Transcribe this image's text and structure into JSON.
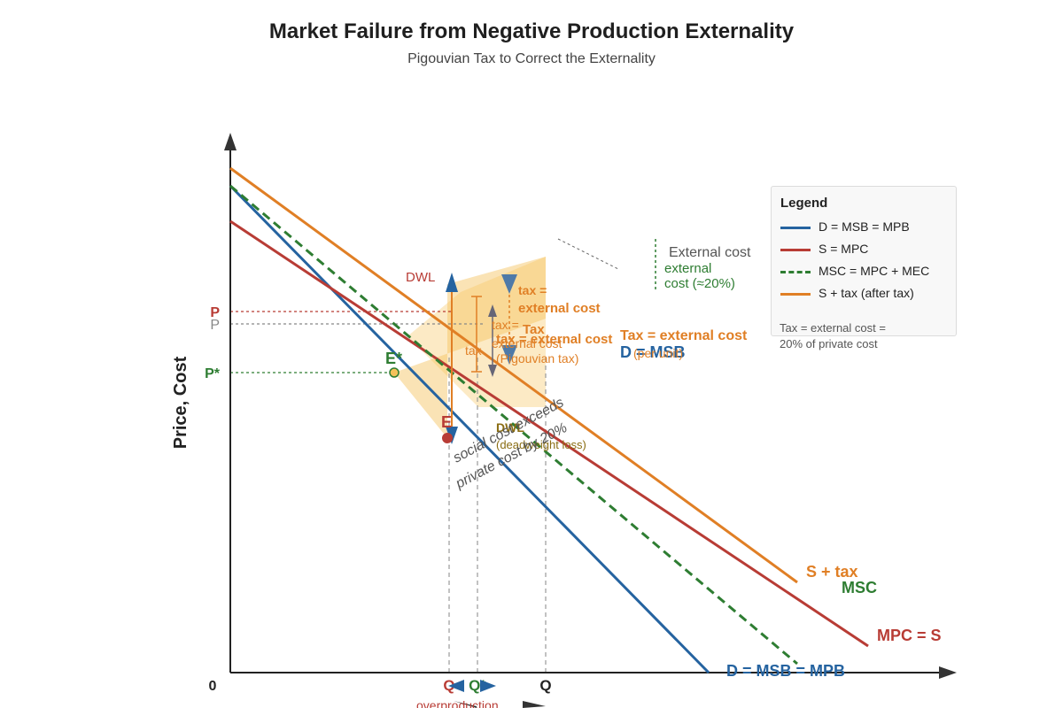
{
  "title": "Market Failure from Negative Production Externality",
  "subtitle": "Pigouvian Tax to Correct the Externality",
  "chart_data": {
    "type": "line",
    "title": "Market Failure from Negative Production Externality",
    "subtitle": "Pigouvian Tax to Correct the Externality",
    "xlabel": "",
    "ylabel": "Price, Cost",
    "xlim": [
      0,
      820
    ],
    "ylim": [
      0,
      610
    ],
    "origin_label": "0",
    "series": [
      {
        "name": "D = MSB = MPB",
        "style": "solid",
        "color": "#2563a0",
        "points": [
          [
            0,
            550
          ],
          [
            540,
            0
          ]
        ]
      },
      {
        "name": "S = MPC",
        "style": "solid",
        "color": "#b83c35",
        "points": [
          [
            0,
            510
          ],
          [
            720,
            30
          ]
        ]
      },
      {
        "name": "MSC = MPC + MEC",
        "style": "dashed",
        "color": "#2e7d32",
        "points": [
          [
            0,
            550
          ],
          [
            640,
            10
          ]
        ]
      },
      {
        "name": "S + tax (after tax)",
        "style": "solid",
        "color": "#e07f25",
        "points": [
          [
            0,
            570
          ],
          [
            640,
            102
          ]
        ]
      }
    ],
    "curve_labels": [
      {
        "text": "S + tax",
        "x": 650,
        "y": 108,
        "color": "#e07f25"
      },
      {
        "text": "MSC",
        "x": 690,
        "y": 90,
        "color": "#2e7d32"
      },
      {
        "text": "MPC = S",
        "x": 730,
        "y": 36,
        "color": "#b83c35"
      },
      {
        "text": "D = MSB = MPB",
        "x": 560,
        "y": -4,
        "color": "#2563a0"
      },
      {
        "text": "D = MSB",
        "x": 440,
        "y": 356,
        "color": "#2563a0"
      }
    ],
    "price_marks": [
      {
        "label": "P",
        "y": 408,
        "color": "#b83c35",
        "x_end": 250
      },
      {
        "label": "P",
        "y": 394,
        "color": "#888888",
        "x_end": 285
      },
      {
        "label": "P*",
        "y": 339,
        "color": "#2e7d32",
        "x_end": 185
      }
    ],
    "quantity_marks": [
      {
        "label": "Q",
        "x": 247,
        "color": "#b83c35"
      },
      {
        "label": "Q*",
        "x": 279,
        "color": "#2e7d32"
      },
      {
        "label": "Q",
        "x": 356,
        "color": "#222222"
      }
    ],
    "points": [
      {
        "label": "E*",
        "x": 185,
        "y": 339,
        "color": "#2e7d32",
        "marker": "ring"
      },
      {
        "label": "E",
        "x": 245,
        "y": 265,
        "color": "#b83c35",
        "marker": "dot"
      }
    ],
    "annotations": [
      {
        "text": "DWL",
        "x": 198,
        "y": 442,
        "color": "#b83c35",
        "size": 15
      },
      {
        "text": "tax =",
        "x": 325,
        "y": 427,
        "color": "#e07f25",
        "size": 14,
        "bold": true
      },
      {
        "text": "external cost",
        "x": 325,
        "y": 407,
        "color": "#e07f25",
        "size": 15,
        "bold": true
      },
      {
        "text": "tax =",
        "x": 295,
        "y": 388,
        "color": "#e07f25",
        "size": 14
      },
      {
        "text": "Tax",
        "x": 330,
        "y": 383,
        "color": "#e07f25",
        "size": 15,
        "bold": true
      },
      {
        "text": "tax = external cost",
        "x": 300,
        "y": 372,
        "color": "#e07f25",
        "size": 15,
        "bold": true
      },
      {
        "text": "external cost",
        "x": 295,
        "y": 367,
        "color": "#e07f25",
        "size": 14
      },
      {
        "text": "(Pigouvian tax)",
        "x": 300,
        "y": 350,
        "color": "#e07f25",
        "size": 14
      },
      {
        "text": "tax",
        "x": 265,
        "y": 359,
        "color": "#e07f25",
        "size": 14
      },
      {
        "text": "Tax = external cost",
        "x": 440,
        "y": 376,
        "color": "#e07f25",
        "size": 16,
        "bold": true
      },
      {
        "text": "(per unit)",
        "x": 455,
        "y": 356,
        "color": "#e07f25",
        "size": 14
      },
      {
        "text": "DWL",
        "x": 300,
        "y": 272,
        "color": "#8a6d12",
        "size": 14,
        "bold": true
      },
      {
        "text": "(deadweight loss)",
        "x": 300,
        "y": 253,
        "color": "#8a6d12",
        "size": 13
      },
      {
        "text": "social cost exceeds",
        "x": 255,
        "y": 237,
        "color": "#555555",
        "size": 16,
        "italic": true,
        "rotate": -28
      },
      {
        "text": "private cost by 20%",
        "x": 258,
        "y": 208,
        "color": "#555555",
        "size": 16,
        "italic": true,
        "rotate": -28
      },
      {
        "text": "External cost",
        "x": 495,
        "y": 470,
        "color": "#555555",
        "size": 16
      },
      {
        "text": "external",
        "x": 490,
        "y": 452,
        "color": "#2e7d32",
        "size": 15
      },
      {
        "text": "cost (≈20%)",
        "x": 490,
        "y": 435,
        "color": "#2e7d32",
        "size": 15
      },
      {
        "text": "overproduction",
        "x": 210,
        "y": -42,
        "color": "#b83c35",
        "size": 14
      }
    ],
    "shaded_regions": [
      {
        "name": "dwl-triangle",
        "color": "#f5c25a",
        "opacity": 0.45,
        "points": [
          [
            185,
            339
          ],
          [
            245,
            265
          ],
          [
            245,
            439
          ],
          [
            356,
            470
          ],
          [
            356,
            400
          ]
        ]
      },
      {
        "name": "tax-wedge",
        "color": "#f5c25a",
        "opacity": 0.35,
        "points": [
          [
            200,
            380
          ],
          [
            260,
            430
          ],
          [
            356,
            470
          ],
          [
            356,
            300
          ],
          [
            280,
            300
          ]
        ]
      }
    ],
    "grid": false,
    "legend_position": "right"
  },
  "legend": {
    "title": "Legend",
    "items": [
      {
        "label": "D = MSB = MPB",
        "color": "#2563a0",
        "style": "solid"
      },
      {
        "label": "S = MPC",
        "color": "#b83c35",
        "style": "solid"
      },
      {
        "label": "MSC = MPC + MEC",
        "color": "#2e7d32",
        "style": "dashed"
      },
      {
        "label": "S + tax (after tax)",
        "color": "#e07f25",
        "style": "solid"
      }
    ],
    "note_line1": "Tax = external cost =",
    "note_line2": "20% of private cost"
  }
}
